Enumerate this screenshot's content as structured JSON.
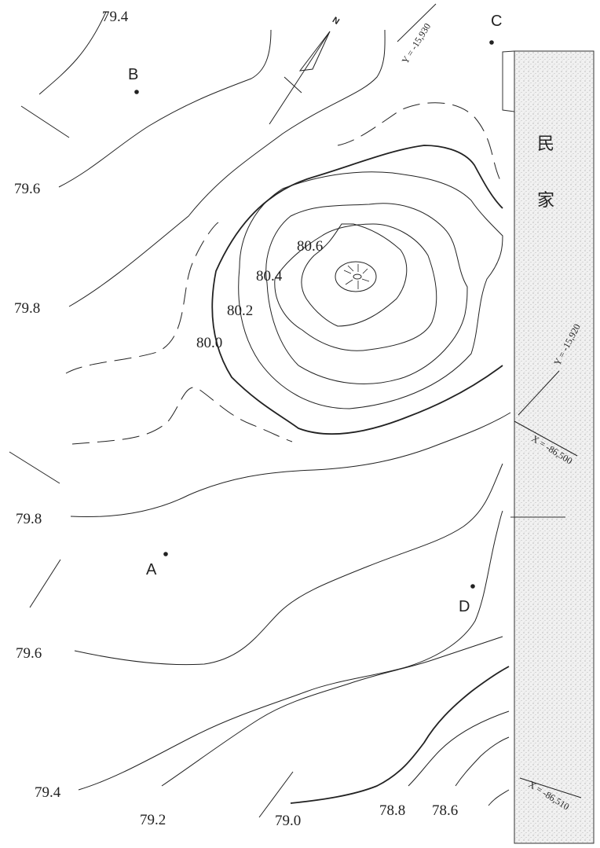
{
  "map": {
    "north_label": "N",
    "building_label_1": "民",
    "building_label_2": "家",
    "points": {
      "A": "A",
      "B": "B",
      "C": "C",
      "D": "D"
    },
    "contour_labels": {
      "c794_top": "79.4",
      "c796_left_top": "79.6",
      "c798_left_top": "79.8",
      "c800": "80.0",
      "c802": "80.2",
      "c804": "80.4",
      "c806": "80.6",
      "c798_left_bottom": "79.8",
      "c796_left_bottom": "79.6",
      "c794_bottom": "79.4",
      "c792": "79.2",
      "c790": "79.0",
      "c788": "78.8",
      "c786": "78.6"
    },
    "grid_labels": {
      "y_top": "Y = -15,930",
      "y_right": "Y = -15,920",
      "x_mid": "X = -86,500",
      "x_bottom": "X = -86,510"
    },
    "colors": {
      "ink": "#222222",
      "building_fill": "#e8e8e8"
    }
  }
}
